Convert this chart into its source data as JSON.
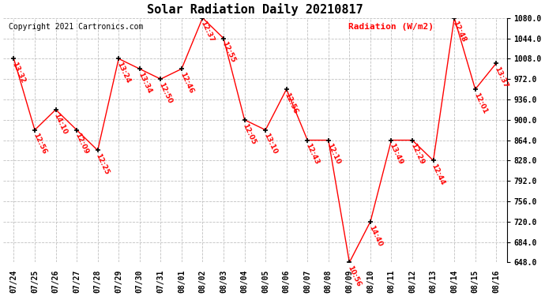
{
  "title": "Solar Radiation Daily 20210817",
  "copyright": "Copyright 2021 Cartronics.com",
  "ylabel": "Radiation (W/m2)",
  "dates": [
    "07/24",
    "07/25",
    "07/26",
    "07/27",
    "07/28",
    "07/29",
    "07/30",
    "07/31",
    "08/01",
    "08/02",
    "08/03",
    "08/04",
    "08/05",
    "08/06",
    "08/07",
    "08/08",
    "08/09",
    "08/10",
    "08/11",
    "08/12",
    "08/13",
    "08/14",
    "08/15",
    "08/16"
  ],
  "values": [
    1008,
    882,
    918,
    882,
    846,
    1008,
    990,
    972,
    990,
    1080,
    1044,
    900,
    882,
    954,
    864,
    864,
    648,
    720,
    864,
    864,
    828,
    1080,
    954,
    1000
  ],
  "labels": [
    "13:32",
    "12:56",
    "14:10",
    "12:09",
    "12:25",
    "13:24",
    "13:34",
    "12:50",
    "12:46",
    "12:37",
    "12:55",
    "12:05",
    "13:10",
    "12:56",
    "12:43",
    "12:10",
    "10:56",
    "14:40",
    "13:49",
    "12:29",
    "12:44",
    "12:48",
    "12:01",
    "13:37"
  ],
  "ylim_min": 648.0,
  "ylim_max": 1080.0,
  "ytick_step": 36.0,
  "line_color": "red",
  "marker_color": "black",
  "label_color": "red",
  "grid_color": "#c0c0c0",
  "background_color": "white",
  "title_fontsize": 11,
  "label_fontsize": 6.5,
  "copyright_fontsize": 7,
  "ylabel_fontsize": 8
}
